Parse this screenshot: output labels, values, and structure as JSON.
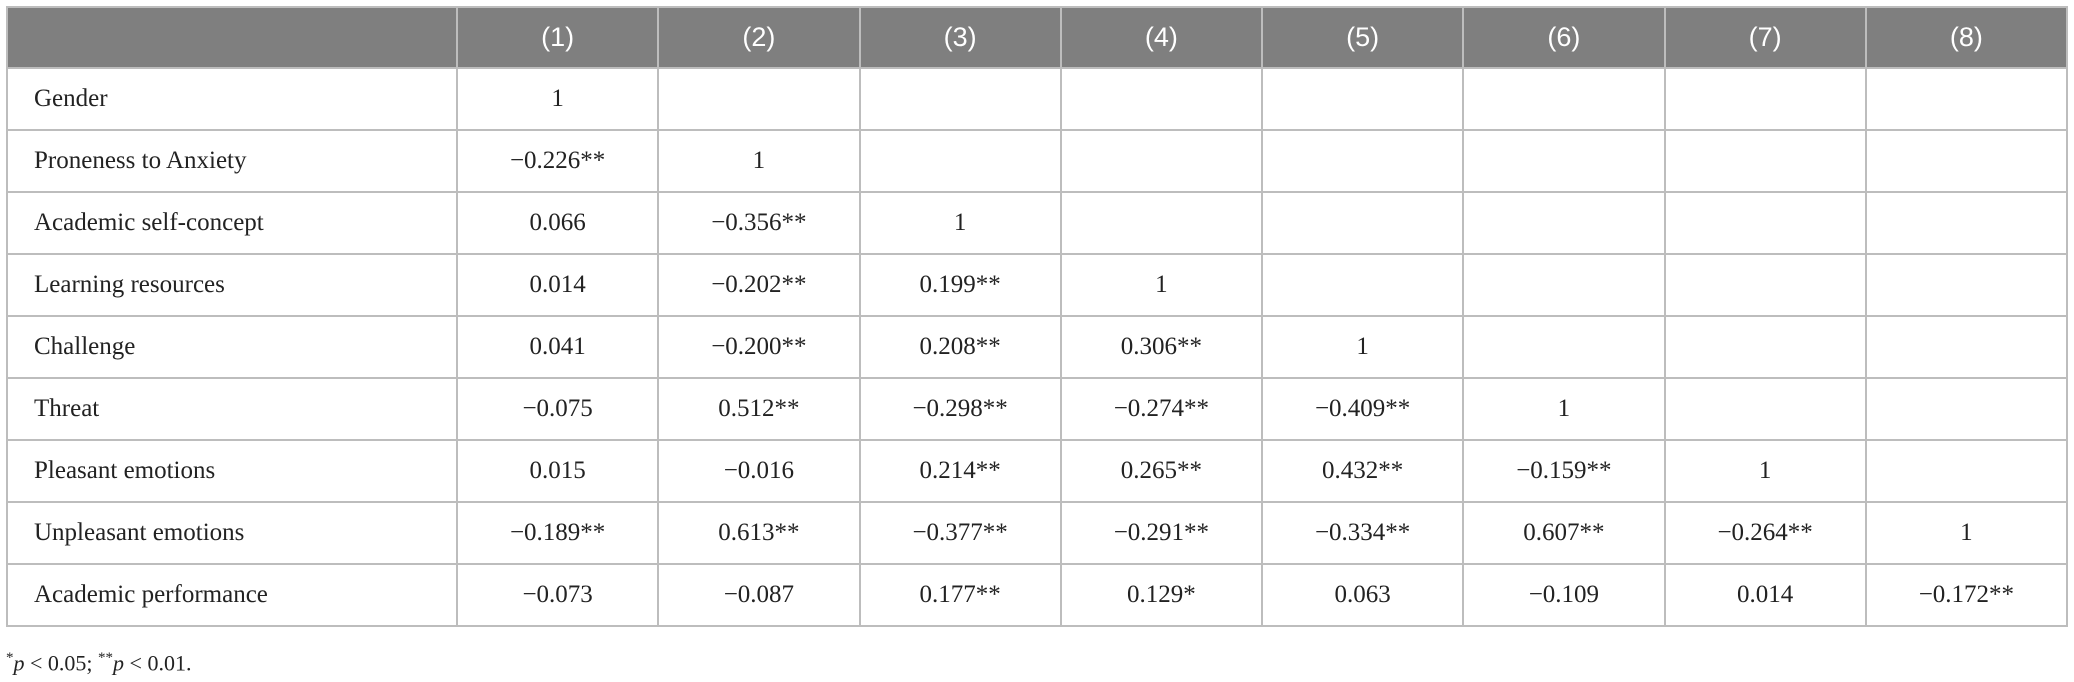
{
  "table": {
    "header": [
      "(1)",
      "(2)",
      "(3)",
      "(4)",
      "(5)",
      "(6)",
      "(7)",
      "(8)"
    ],
    "rows": [
      {
        "label": "Gender",
        "cells": [
          "1"
        ]
      },
      {
        "label": "Proneness to Anxiety",
        "cells": [
          "−0.226**",
          "1"
        ]
      },
      {
        "label": "Academic self-concept",
        "cells": [
          "0.066",
          "−0.356**",
          "1"
        ]
      },
      {
        "label": "Learning resources",
        "cells": [
          "0.014",
          "−0.202**",
          "0.199**",
          "1"
        ]
      },
      {
        "label": "Challenge",
        "cells": [
          "0.041",
          "−0.200**",
          "0.208**",
          "0.306**",
          "1"
        ]
      },
      {
        "label": "Threat",
        "cells": [
          "−0.075",
          "0.512**",
          "−0.298**",
          "−0.274**",
          "−0.409**",
          "1"
        ]
      },
      {
        "label": "Pleasant emotions",
        "cells": [
          "0.015",
          "−0.016",
          "0.214**",
          "0.265**",
          "0.432**",
          "−0.159**",
          "1"
        ]
      },
      {
        "label": "Unpleasant emotions",
        "cells": [
          "−0.189**",
          "0.613**",
          "−0.377**",
          "−0.291**",
          "−0.334**",
          "0.607**",
          "−0.264**",
          "1"
        ]
      },
      {
        "label": "Academic performance",
        "cells": [
          "−0.073",
          "−0.087",
          "0.177**",
          "0.129*",
          "0.063",
          "−0.109",
          "0.014",
          "−0.172**"
        ]
      }
    ]
  },
  "footnote": [
    "*",
    "p",
    " < 0.05; ",
    "**",
    "p",
    " < 0.01."
  ]
}
